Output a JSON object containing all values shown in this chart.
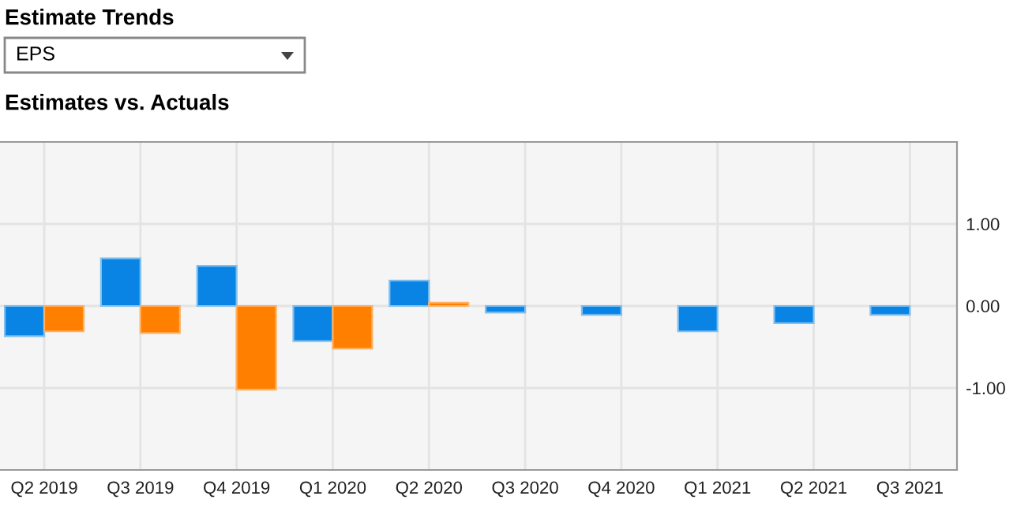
{
  "chart_data": {
    "type": "bar",
    "title": "Estimate Trends",
    "subtitle": "Estimates vs. Actuals",
    "annotations": [
      "EPS"
    ],
    "categories": [
      "Q2 2019",
      "Q3 2019",
      "Q4 2019",
      "Q1 2020",
      "Q2 2020",
      "Q3 2020",
      "Q4 2020",
      "Q1 2021",
      "Q2 2021",
      "Q3 2021"
    ],
    "series": [
      {
        "color": "#0a84e4",
        "values": [
          -0.37,
          0.58,
          0.49,
          -0.43,
          0.31,
          -0.08,
          -0.11,
          -0.31,
          -0.21,
          -0.11
        ]
      },
      {
        "color": "#ff7f00",
        "values": [
          -0.31,
          -0.33,
          -1.02,
          -0.52,
          0.04,
          null,
          null,
          null,
          null,
          null
        ]
      }
    ],
    "ylim": [
      -2,
      2
    ],
    "yticks": [
      {
        "value": 1,
        "label": "1.00"
      },
      {
        "value": 0,
        "label": "0.00"
      },
      {
        "value": -1,
        "label": "-1.00"
      }
    ],
    "grid": true,
    "legend": false
  }
}
